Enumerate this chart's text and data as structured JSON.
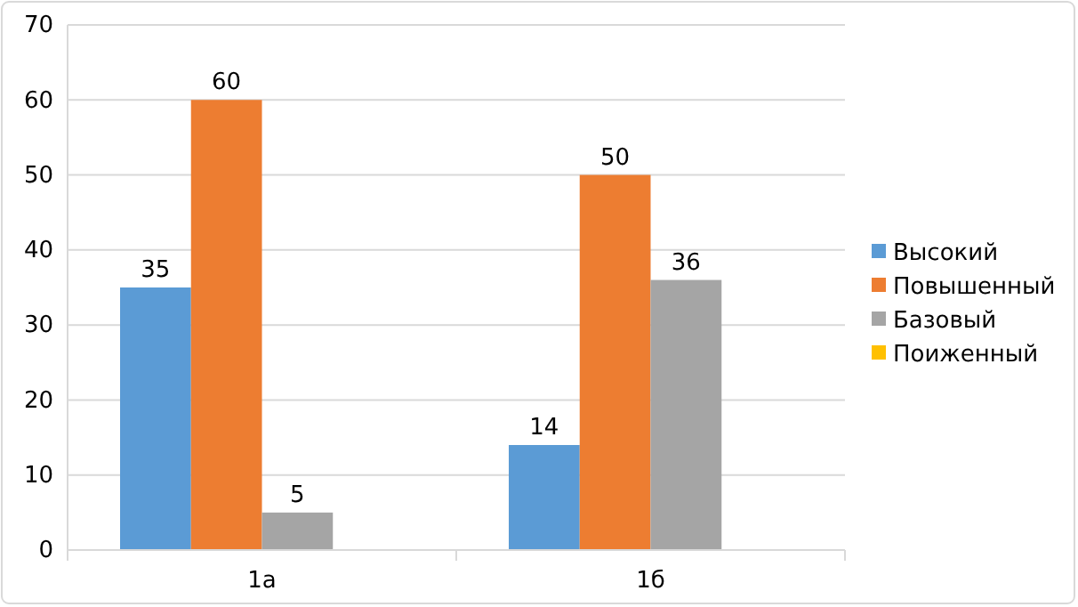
{
  "chart_data": {
    "type": "bar",
    "categories": [
      "1а",
      "1б"
    ],
    "series": [
      {
        "name": "Высокий",
        "color": "#5b9bd5",
        "values": [
          35,
          14
        ]
      },
      {
        "name": "Повышенный",
        "color": "#ed7d31",
        "values": [
          60,
          50
        ]
      },
      {
        "name": "Базовый",
        "color": "#a5a5a5",
        "values": [
          5,
          36
        ]
      },
      {
        "name": "Поиженный",
        "color": "#ffc000",
        "values": [
          null,
          null
        ]
      }
    ],
    "ylim": [
      0,
      70
    ],
    "yticks": [
      0,
      10,
      20,
      30,
      40,
      50,
      60,
      70
    ],
    "grid": "y",
    "legend": "right",
    "data_labels": true
  }
}
